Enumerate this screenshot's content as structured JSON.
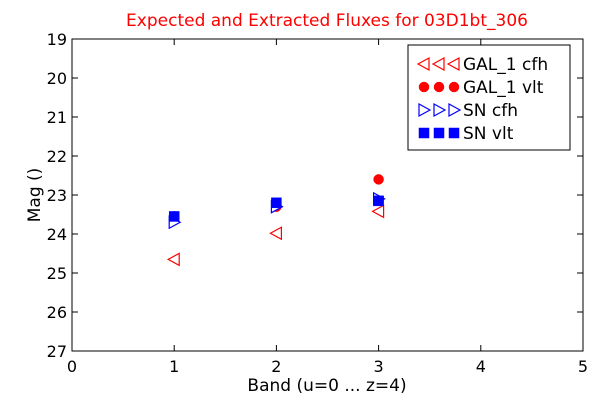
{
  "chart_data": {
    "type": "scatter",
    "title": "Expected and Extracted Fluxes for 03D1bt_306",
    "xlabel": "Band (u=0 ... z=4)",
    "ylabel": "Mag ()",
    "xlim": [
      0,
      5
    ],
    "ylim": [
      27,
      19
    ],
    "y_inverted": true,
    "grid": false,
    "legend_position": "upper-right",
    "x_ticks": [
      "0",
      "1",
      "2",
      "3",
      "4",
      "5"
    ],
    "y_ticks": [
      "19",
      "20",
      "21",
      "22",
      "23",
      "24",
      "25",
      "26",
      "27"
    ],
    "series": [
      {
        "name": "GAL_1 cfh",
        "marker": "triangle-left-open",
        "color": "#ff0000",
        "points": [
          {
            "x": 1,
            "y": 24.65
          },
          {
            "x": 2,
            "y": 23.98
          },
          {
            "x": 3,
            "y": 23.42
          }
        ]
      },
      {
        "name": "GAL_1 vlt",
        "marker": "circle-filled",
        "color": "#ff0000",
        "points": [
          {
            "x": 1,
            "y": 23.55
          },
          {
            "x": 2,
            "y": 23.3
          },
          {
            "x": 3,
            "y": 22.6
          }
        ]
      },
      {
        "name": "SN cfh",
        "marker": "triangle-right-open",
        "color": "#0000ff",
        "points": [
          {
            "x": 1,
            "y": 23.7
          },
          {
            "x": 2,
            "y": 23.3
          },
          {
            "x": 3,
            "y": 23.1
          }
        ]
      },
      {
        "name": "SN vlt",
        "marker": "square-filled",
        "color": "#0000ff",
        "points": [
          {
            "x": 1,
            "y": 23.55
          },
          {
            "x": 2,
            "y": 23.2
          },
          {
            "x": 3,
            "y": 23.15
          }
        ]
      }
    ]
  }
}
